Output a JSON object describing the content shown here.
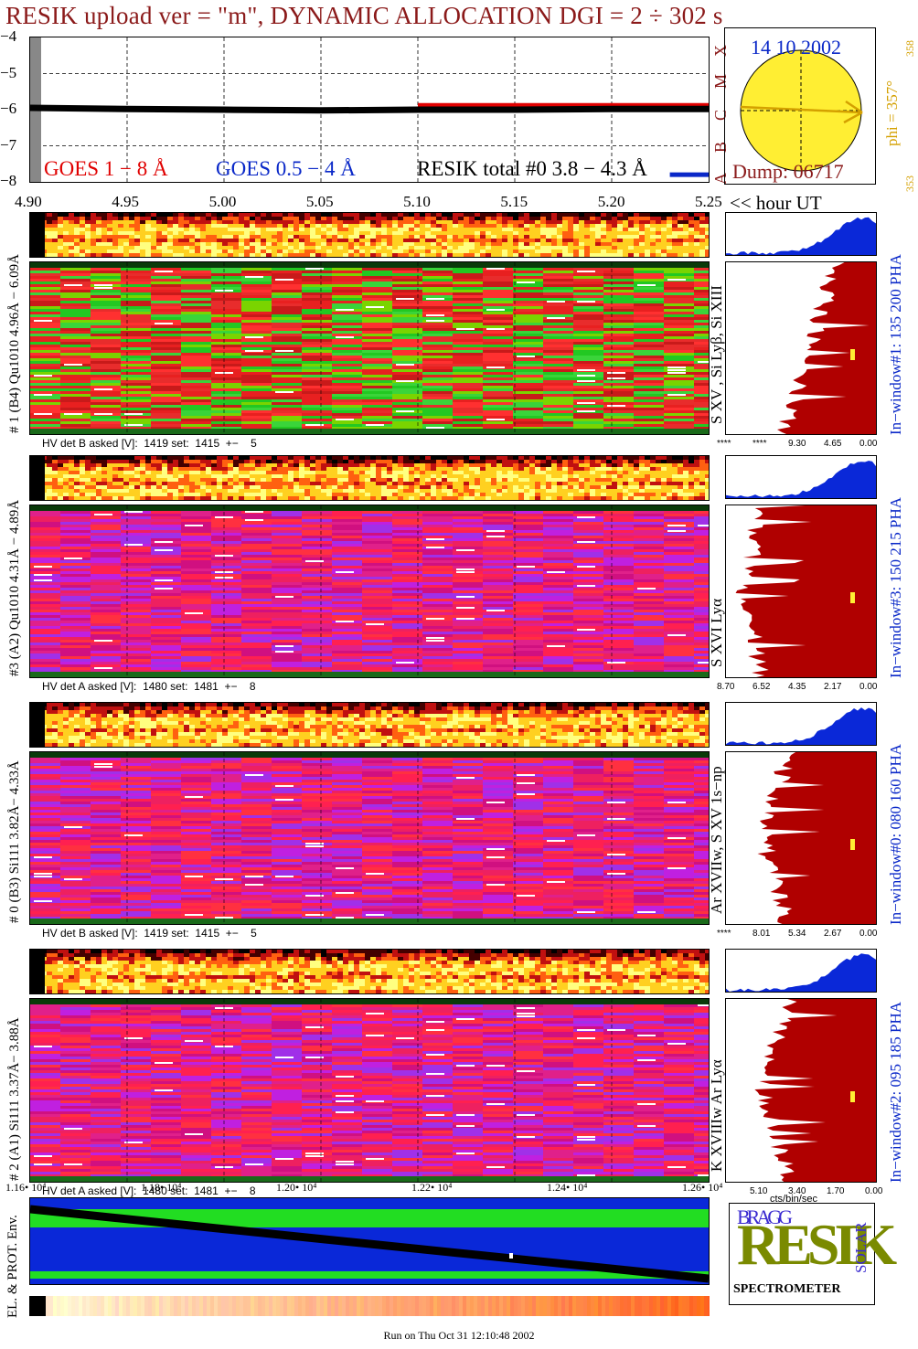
{
  "title": "RESIK upload ver = \"m\", DYNAMIC ALLOCATION  DGI =   2 ÷ 302 s",
  "goes": {
    "ytick_labels": [
      "−4",
      "−5",
      "−6",
      "−7",
      "−8"
    ],
    "legend_goes18": "GOES 1 − 8 Å",
    "legend_goes054": "GOES 0.5 − 4 Å",
    "legend_resik": "RESIK total #0  3.8 − 4.3 Å",
    "class_letters": [
      "X",
      "M",
      "C",
      "B",
      "A"
    ]
  },
  "time_axis": {
    "tick_labels": [
      "4.90",
      "4.95",
      "5.00",
      "5.05",
      "5.10",
      "5.15",
      "5.20",
      "5.25"
    ],
    "unit_label": "<< hour UT"
  },
  "sun": {
    "date": "14 10 2002",
    "dump": "Dump: 06717",
    "phi": "phi = 357°",
    "phi_max": "358",
    "phi_min": "353"
  },
  "channels": [
    {
      "left_label": "# 1 (B4) Qu1010 4.96Å − 6.09Å",
      "lines_label": "S XV , Si Lyβ, Si XIII",
      "window_label": "In−window#1:  135 200 PHA",
      "hv_note": "HV det B asked [V]:  1419 set:  1415  +−    5",
      "hist_ticks": [
        "****",
        "****",
        "9.30",
        "4.65",
        "0.00"
      ],
      "style": "greenred"
    },
    {
      "left_label": "#3 (A2) Qu1010  4.31Å  − 4.89Å",
      "lines_label": "S XVI Lyα",
      "window_label": "In−window#3:  150 215 PHA",
      "hv_note": "HV det A asked [V]:  1480 set:  1481  +−    8",
      "hist_ticks": [
        "8.70",
        "6.52",
        "4.35",
        "2.17",
        "0.00"
      ],
      "style": "purplered"
    },
    {
      "left_label": "# 0 (B3) Si111  3.82Å− 4.33Å",
      "lines_label": "Ar XVIIw,  S XV 1s−np",
      "window_label": "In−window#0:  080 160 PHA",
      "hv_note": "HV det B asked [V]:  1419 set:  1415  +−    5",
      "hist_ticks": [
        "****",
        "8.01",
        "5.34",
        "2.67",
        "0.00"
      ],
      "style": "purplered"
    },
    {
      "left_label": "# 2 (A1) Si111  3.37Å− 3.88Å",
      "lines_label": "K XVIIIw  Ar Lyα",
      "window_label": "In−window#2:  095 185 PHA",
      "hv_note": "HV det A asked [V]:  1480 set:  1481  +−    8",
      "hist_ticks": [
        "5.10",
        "3.40",
        "1.70",
        "0.00"
      ],
      "style": "purplered"
    }
  ],
  "hist_xlabel": "cts/bin/sec",
  "env": {
    "label": "EL. & PROT. Env.",
    "tick_labels": [
      "1.16• 10⁴",
      "1.18• 10⁴",
      "1.20• 10⁴",
      "1.22• 10⁴",
      "1.24• 10⁴",
      "1.26• 10⁴"
    ]
  },
  "logo": {
    "letters": "RESIK",
    "bragg": "BRAGG",
    "solar": "SOLAR",
    "spectrometer": "SPECTROMETER"
  },
  "footer": "Run on Thu Oct 31 12:10:48 2002",
  "colors": {
    "title": "#8b1a1a",
    "goes18": "#e00000",
    "goes054": "#0a28c8",
    "hist": "#b00000",
    "phi": "#d4a000",
    "sun": "#ffee33"
  },
  "chart_data": {
    "type": "line",
    "xlabel": "<< hour UT",
    "xlim": [
      4.9,
      5.25
    ],
    "ylim": [
      -8,
      -4
    ],
    "series": [
      {
        "name": "GOES 1 − 8 Å",
        "x": [
          5.1,
          5.25
        ],
        "values": [
          -5.88,
          -5.88
        ]
      },
      {
        "name": "GOES 0.5 − 4 Å",
        "x": [
          5.23,
          5.25
        ],
        "values": [
          -7.8,
          -7.8
        ]
      },
      {
        "name": "RESIK total #0  3.8 − 4.3 Å",
        "x": [
          4.9,
          4.95,
          5.0,
          5.05,
          5.1,
          5.15,
          5.2,
          5.25
        ],
        "values": [
          -5.95,
          -5.98,
          -6.0,
          -6.02,
          -6.0,
          -6.0,
          -5.98,
          -5.98
        ]
      }
    ]
  }
}
